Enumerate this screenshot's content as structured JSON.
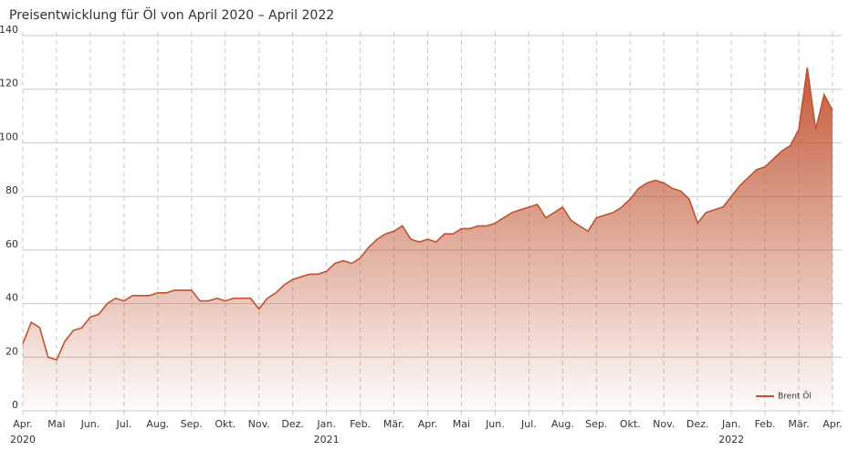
{
  "chart_data": {
    "type": "area",
    "title": "Preisentwicklung für Öl von April 2020 – April 2022",
    "categories": [
      "Apr.",
      null,
      null,
      null,
      "Mai",
      null,
      null,
      null,
      "Jun.",
      null,
      null,
      null,
      "Jul.",
      null,
      null,
      null,
      "Aug.",
      null,
      null,
      null,
      "Sep.",
      null,
      null,
      null,
      "Okt.",
      null,
      null,
      null,
      "Nov.",
      null,
      null,
      null,
      "Dez.",
      null,
      null,
      null,
      "Jan.",
      null,
      null,
      null,
      "Feb.",
      null,
      null,
      null,
      "Mär.",
      null,
      null,
      null,
      "Apr.",
      null,
      null,
      null,
      "Mai",
      null,
      null,
      null,
      "Jun.",
      null,
      null,
      null,
      "Jul.",
      null,
      null,
      null,
      "Aug.",
      null,
      null,
      null,
      "Sep.",
      null,
      null,
      null,
      "Okt.",
      null,
      null,
      null,
      "Nov.",
      null,
      null,
      null,
      "Dez.",
      null,
      null,
      null,
      "Jan.",
      null,
      null,
      null,
      "Feb.",
      null,
      null,
      null,
      "Mär.",
      null,
      null,
      null,
      "Apr."
    ],
    "year_ticks": [
      {
        "value": 0,
        "label": "2020"
      },
      {
        "value": 36,
        "label": "2021"
      },
      {
        "value": 84,
        "label": "2022"
      }
    ],
    "series": [
      {
        "name": "Brent Öl",
        "color": "#c0522f",
        "values": [
          25,
          33,
          31,
          20,
          19,
          26,
          30,
          31,
          35,
          36,
          40,
          42,
          41,
          43,
          43,
          43,
          44,
          44,
          45,
          45,
          45,
          41,
          41,
          42,
          41,
          42,
          42,
          42,
          38,
          42,
          44,
          47,
          49,
          50,
          51,
          51,
          52,
          55,
          56,
          55,
          57,
          61,
          64,
          66,
          67,
          69,
          64,
          63,
          64,
          63,
          66,
          66,
          68,
          68,
          69,
          69,
          70,
          72,
          74,
          75,
          76,
          77,
          72,
          74,
          76,
          71,
          69,
          67,
          72,
          73,
          74,
          76,
          79,
          83,
          85,
          86,
          85,
          83,
          82,
          79,
          70,
          74,
          75,
          76,
          80,
          84,
          87,
          90,
          91,
          94,
          97,
          99,
          105,
          128,
          105,
          118,
          112
        ]
      }
    ],
    "ylim": [
      0,
      140
    ],
    "yticks": [
      0,
      20,
      40,
      60,
      80,
      100,
      120,
      140
    ],
    "grid": true,
    "legend": "bottom-right"
  }
}
